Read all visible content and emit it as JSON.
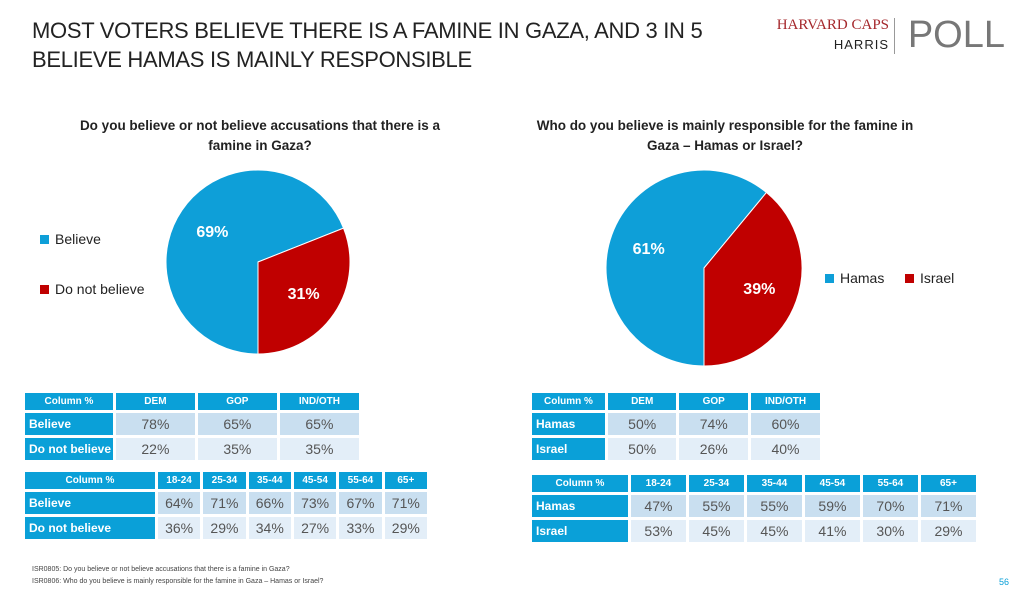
{
  "title_line1": "MOST VOTERS BELIEVE THERE IS A FAMINE IN GAZA, AND 3 IN 5",
  "title_line2": "BELIEVE HAMAS IS MAINLY RESPONSIBLE",
  "logo": {
    "line1": "HARVARD CAPS",
    "line2": "HARRIS",
    "line3": "POLL"
  },
  "colors": {
    "blue": "#0aa0d8",
    "pie_blue": "#0e9fd8",
    "red": "#c00000"
  },
  "chart_data": [
    {
      "type": "pie",
      "title": "Do you believe or not believe accusations that there is a famine in Gaza?",
      "labels": [
        "Believe",
        "Do not believe"
      ],
      "values": [
        69,
        31
      ],
      "value_labels": [
        "69%",
        "31%"
      ],
      "legend": "left"
    },
    {
      "type": "pie",
      "title": "Who do you believe is mainly responsible for the famine in Gaza – Hamas or Israel?",
      "labels": [
        "Hamas",
        "Israel"
      ],
      "values": [
        61,
        39
      ],
      "value_labels": [
        "61%",
        "39%"
      ],
      "legend": "right"
    }
  ],
  "tables": {
    "t1": {
      "headers": [
        "Column %",
        "DEM",
        "GOP",
        "IND/OTH"
      ],
      "rows": [
        [
          "Believe",
          "78%",
          "65%",
          "65%"
        ],
        [
          "Do not believe",
          "22%",
          "35%",
          "35%"
        ]
      ]
    },
    "t2": {
      "headers": [
        "Column %",
        "18-24",
        "25-34",
        "35-44",
        "45-54",
        "55-64",
        "65+"
      ],
      "rows": [
        [
          "Believe",
          "64%",
          "71%",
          "66%",
          "73%",
          "67%",
          "71%"
        ],
        [
          "Do not believe",
          "36%",
          "29%",
          "34%",
          "27%",
          "33%",
          "29%"
        ]
      ]
    },
    "t3": {
      "headers": [
        "Column %",
        "DEM",
        "GOP",
        "IND/OTH"
      ],
      "rows": [
        [
          "Hamas",
          "50%",
          "74%",
          "60%"
        ],
        [
          "Israel",
          "50%",
          "26%",
          "40%"
        ]
      ]
    },
    "t4": {
      "headers": [
        "Column %",
        "18-24",
        "25-34",
        "35-44",
        "45-54",
        "55-64",
        "65+"
      ],
      "rows": [
        [
          "Hamas",
          "47%",
          "55%",
          "55%",
          "59%",
          "70%",
          "71%"
        ],
        [
          "Israel",
          "53%",
          "45%",
          "45%",
          "41%",
          "30%",
          "29%"
        ]
      ]
    }
  },
  "footnotes": [
    "ISR0805: Do you believe or not believe accusations that there is a famine in Gaza?",
    "ISR0806: Who do you believe is mainly responsible for the famine in Gaza – Hamas or Israel?"
  ],
  "page_number": "56"
}
